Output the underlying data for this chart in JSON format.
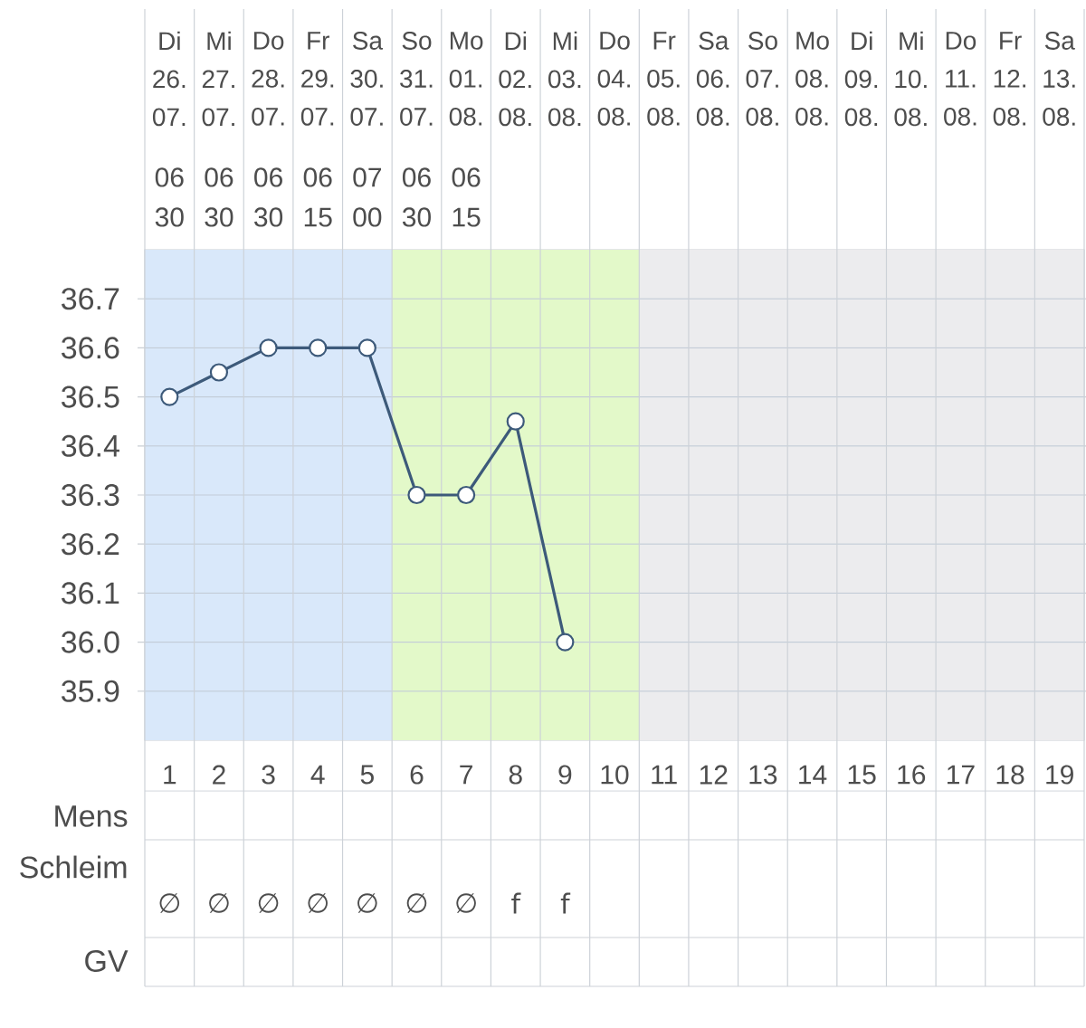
{
  "chart_data": {
    "type": "line",
    "x": [
      1,
      2,
      3,
      4,
      5,
      6,
      7,
      8,
      9
    ],
    "values": [
      36.5,
      36.55,
      36.6,
      36.6,
      36.6,
      36.3,
      36.3,
      36.45,
      36.0
    ],
    "color": "#3d5a7a",
    "marker": "circle",
    "line_style": "solid",
    "grid": "y",
    "xlim": [
      0.5,
      19.5
    ],
    "ylim": [
      35.8,
      36.8
    ],
    "xticks": [
      1,
      2,
      3,
      4,
      5,
      6,
      7,
      8,
      9,
      10,
      11,
      12,
      13,
      14,
      15,
      16,
      17,
      18,
      19
    ],
    "yticks": [
      35.9,
      {
        "value": 36.0,
        "label": "36.0"
      },
      36.1,
      36.2,
      36.3,
      36.4,
      36.5,
      36.6,
      36.7
    ],
    "bands": [
      {
        "axis": "x",
        "from": 0.5,
        "to": 5.5,
        "color": "#d9e8fa"
      },
      {
        "axis": "x",
        "from": 5.5,
        "to": 10.5,
        "color": "#e3f9c9"
      },
      {
        "axis": "x",
        "from": 10.5,
        "to": 19.5,
        "color": "#ececee"
      }
    ],
    "annotations": [
      "Di 26. 07.",
      "Mi 27. 07.",
      "Do 28. 07.",
      "Fr 29. 07.",
      "Sa 30. 07.",
      "So 31. 07.",
      "Mo 01. 08.",
      "Di 02. 08.",
      "Mi 03. 08.",
      "Do 04. 08.",
      "Fr 05. 08.",
      "Sa 06. 08.",
      "So 07. 08.",
      "Mo 08. 08.",
      "Di 09. 08.",
      "Mi 10. 08.",
      "Do 11. 08.",
      "Fr 12. 08.",
      "Sa 13. 08.",
      "06 30",
      "06 30",
      "06 30",
      "06 15",
      "07 00",
      "06 30",
      "06 15",
      "Mens",
      "Schleim",
      "∅",
      "∅",
      "∅",
      "∅",
      "∅",
      "∅",
      "∅",
      "f",
      "f",
      "GV"
    ]
  }
}
